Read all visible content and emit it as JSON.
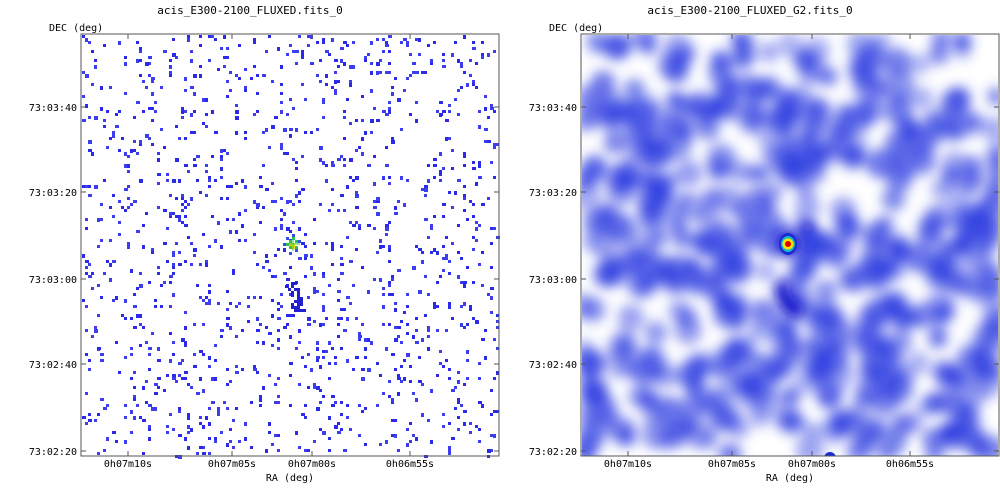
{
  "chart_data": [
    {
      "type": "heatmap",
      "title": "acis_E300-2100_FLUXED.fits_0",
      "xlabel": "RA (deg)",
      "ylabel": "DEC (deg)",
      "x_ticks": [
        "0h07m10s",
        "0h07m05s",
        "0h07m00s",
        "0h06m55s"
      ],
      "y_ticks": [
        "73:03:40",
        "73:03:20",
        "73:03:00",
        "73:02:40",
        "73:02:20"
      ],
      "colormap": "white-blue-green-yellow-red",
      "style": "sparse individual photon events",
      "features": [
        {
          "label": "bright point source",
          "ra": "0h07m01.6s",
          "dec": "73:03:08",
          "level": 0.95
        },
        {
          "label": "faint extended tail",
          "ra": "0h07m02s",
          "dec": "73:02:55",
          "level": 0.3
        }
      ]
    },
    {
      "type": "heatmap",
      "title": "acis_E300-2100_FLUXED_G2.fits_0",
      "xlabel": "RA (deg)",
      "ylabel": "DEC (deg)",
      "x_ticks": [
        "0h07m10s",
        "0h07m05s",
        "0h07m00s",
        "0h06m55s"
      ],
      "y_ticks": [
        "73:03:40",
        "73:03:20",
        "73:03:00",
        "73:02:40",
        "73:02:20"
      ],
      "colormap": "white-blue-green-yellow-red",
      "style": "gaussian smoothed (G2)",
      "features": [
        {
          "label": "bright point source",
          "ra": "0h07m01.6s",
          "dec": "73:03:08",
          "level": 1.0
        },
        {
          "label": "extended arc",
          "ra": "0h07m01.5s",
          "dec": "73:02:55",
          "level": 0.55
        }
      ]
    }
  ],
  "colors": {
    "background": "#ffffff",
    "low": "#3030e0",
    "mid": "#00d000",
    "high": "#ffff00",
    "peak": "#e00000"
  }
}
